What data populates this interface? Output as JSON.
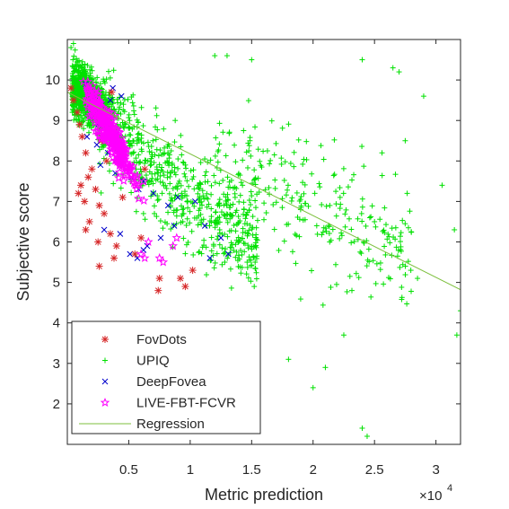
{
  "chart_data": {
    "type": "scatter",
    "xlabel": "Metric prediction",
    "ylabel": "Subjective score",
    "x_exponent_label": "×10",
    "x_exponent_power": "4",
    "xlim": [
      0,
      32000
    ],
    "ylim": [
      1,
      11
    ],
    "xticks": [
      5000,
      10000,
      15000,
      20000,
      25000,
      30000
    ],
    "xtick_labels": [
      "0.5",
      "1",
      "1.5",
      "2",
      "2.5",
      "3"
    ],
    "yticks": [
      2,
      3,
      4,
      5,
      6,
      7,
      8,
      9,
      10
    ],
    "ytick_labels": [
      "2",
      "3",
      "4",
      "5",
      "6",
      "7",
      "8",
      "9",
      "10"
    ],
    "grid": false,
    "legend_position": "bottom-left",
    "series": [
      {
        "name": "FovDots",
        "marker": "asterisk",
        "color": "#d62728",
        "points": [
          [
            300,
            9.8
          ],
          [
            500,
            9.5
          ],
          [
            800,
            9.2
          ],
          [
            1000,
            8.9
          ],
          [
            1200,
            8.6
          ],
          [
            1500,
            8.2
          ],
          [
            1700,
            7.6
          ],
          [
            1100,
            7.4
          ],
          [
            900,
            7.2
          ],
          [
            1400,
            7.0
          ],
          [
            2000,
            7.8
          ],
          [
            2300,
            7.3
          ],
          [
            2600,
            6.9
          ],
          [
            3000,
            6.7
          ],
          [
            1800,
            6.5
          ],
          [
            1500,
            6.3
          ],
          [
            2500,
            6.0
          ],
          [
            3500,
            6.2
          ],
          [
            4000,
            5.9
          ],
          [
            2600,
            5.4
          ],
          [
            3800,
            5.6
          ],
          [
            5500,
            5.7
          ],
          [
            7500,
            5.1
          ],
          [
            7400,
            4.8
          ],
          [
            9200,
            5.1
          ],
          [
            9600,
            4.9
          ],
          [
            10200,
            5.3
          ],
          [
            6000,
            6.1
          ],
          [
            4500,
            7.1
          ],
          [
            3200,
            8.0
          ],
          [
            2800,
            8.5
          ],
          [
            4200,
            8.1
          ],
          [
            3600,
            9.7
          ],
          [
            6300,
            7.8
          ]
        ]
      },
      {
        "name": "UPIQ",
        "marker": "plus",
        "color": "#00e000",
        "points": []
      },
      {
        "name": "DeepFovea",
        "marker": "x",
        "color": "#0000cc",
        "points": [
          [
            1500,
            9.9
          ],
          [
            2200,
            9.6
          ],
          [
            2800,
            9.4
          ],
          [
            3500,
            9.5
          ],
          [
            1900,
            9.1
          ],
          [
            2500,
            8.9
          ],
          [
            3000,
            9.2
          ],
          [
            1600,
            8.6
          ],
          [
            2400,
            8.4
          ],
          [
            3300,
            8.2
          ],
          [
            4100,
            8.7
          ],
          [
            4500,
            8.0
          ],
          [
            2700,
            7.9
          ],
          [
            3900,
            7.7
          ],
          [
            5200,
            7.6
          ],
          [
            6200,
            7.5
          ],
          [
            5800,
            7.3
          ],
          [
            7000,
            7.2
          ],
          [
            8200,
            6.9
          ],
          [
            9000,
            7.1
          ],
          [
            10400,
            7.0
          ],
          [
            11200,
            6.4
          ],
          [
            12500,
            6.1
          ],
          [
            13100,
            5.7
          ],
          [
            11600,
            5.6
          ],
          [
            8700,
            6.4
          ],
          [
            7600,
            6.1
          ],
          [
            6500,
            5.9
          ],
          [
            6200,
            5.8
          ],
          [
            5700,
            5.6
          ],
          [
            5100,
            5.7
          ],
          [
            4300,
            6.2
          ],
          [
            3000,
            6.3
          ],
          [
            3700,
            9.8
          ],
          [
            4400,
            9.6
          ]
        ]
      },
      {
        "name": "LIVE-FBT-FCVR",
        "marker": "star",
        "color": "#ff00ff",
        "points": []
      }
    ],
    "regression": {
      "name": "Regression",
      "color": "#7cbf3c",
      "x": [
        0,
        32000
      ],
      "y": [
        9.7,
        4.82
      ]
    }
  }
}
